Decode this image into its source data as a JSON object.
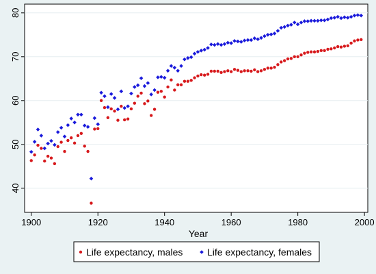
{
  "chart_data": {
    "type": "scatter",
    "title": "",
    "xlabel": "Year",
    "ylabel": "",
    "xlim": [
      1898,
      2001
    ],
    "ylim": [
      34.5,
      82
    ],
    "x_ticks": [
      1900,
      1920,
      1940,
      1960,
      1980,
      2000
    ],
    "y_ticks": [
      40,
      50,
      60,
      70,
      80
    ],
    "x_tick_labels": [
      "1900",
      "1920",
      "1940",
      "1960",
      "1980",
      "2000"
    ],
    "y_tick_labels": [
      "40",
      "50",
      "60",
      "70",
      "80"
    ],
    "grid": true,
    "legend_position": "bottom",
    "x": [
      1900,
      1901,
      1902,
      1903,
      1904,
      1905,
      1906,
      1907,
      1908,
      1909,
      1910,
      1911,
      1912,
      1913,
      1914,
      1915,
      1916,
      1917,
      1918,
      1919,
      1920,
      1921,
      1922,
      1923,
      1924,
      1925,
      1926,
      1927,
      1928,
      1929,
      1930,
      1931,
      1932,
      1933,
      1934,
      1935,
      1936,
      1937,
      1938,
      1939,
      1940,
      1941,
      1942,
      1943,
      1944,
      1945,
      1946,
      1947,
      1948,
      1949,
      1950,
      1951,
      1952,
      1953,
      1954,
      1955,
      1956,
      1957,
      1958,
      1959,
      1960,
      1961,
      1962,
      1963,
      1964,
      1965,
      1966,
      1967,
      1968,
      1969,
      1970,
      1971,
      1972,
      1973,
      1974,
      1975,
      1976,
      1977,
      1978,
      1979,
      1980,
      1981,
      1982,
      1983,
      1984,
      1985,
      1986,
      1987,
      1988,
      1989,
      1990,
      1991,
      1992,
      1993,
      1994,
      1995,
      1996,
      1997,
      1998,
      1999
    ],
    "series": [
      {
        "name": "Life expectancy, males",
        "color": "#d7191c",
        "values": [
          46.3,
          47.6,
          49.8,
          49.1,
          46.2,
          47.3,
          46.9,
          45.6,
          49.5,
          50.5,
          48.4,
          50.9,
          51.5,
          50.3,
          52.0,
          52.5,
          49.6,
          48.4,
          36.6,
          53.5,
          53.6,
          60.0,
          58.4,
          56.1,
          58.1,
          57.6,
          55.5,
          58.7,
          55.6,
          55.8,
          58.1,
          59.4,
          61.0,
          61.7,
          59.3,
          59.9,
          56.6,
          58.0,
          61.9,
          62.1,
          60.8,
          63.1,
          64.7,
          62.4,
          63.6,
          63.6,
          64.4,
          64.4,
          64.6,
          65.2,
          65.6,
          65.9,
          65.8,
          66.0,
          66.7,
          66.7,
          66.7,
          66.4,
          66.6,
          66.8,
          66.6,
          67.1,
          66.9,
          66.6,
          66.8,
          66.8,
          66.7,
          67.0,
          66.6,
          66.8,
          67.1,
          67.4,
          67.4,
          67.6,
          68.2,
          68.8,
          69.1,
          69.5,
          69.6,
          70.0,
          70.0,
          70.4,
          70.8,
          71.0,
          71.1,
          71.1,
          71.2,
          71.4,
          71.4,
          71.7,
          71.8,
          72.0,
          72.3,
          72.2,
          72.4,
          72.5,
          73.1,
          73.6,
          73.8,
          73.9
        ]
      },
      {
        "name": "Life expectancy, females",
        "color": "#1a1adb",
        "values": [
          48.3,
          50.6,
          53.4,
          52.0,
          49.1,
          50.2,
          50.8,
          49.9,
          52.8,
          53.8,
          51.8,
          54.4,
          55.9,
          55.0,
          56.8,
          56.8,
          54.3,
          54.0,
          42.2,
          56.0,
          54.6,
          61.8,
          61.0,
          58.5,
          61.5,
          60.6,
          58.0,
          62.1,
          58.3,
          58.7,
          61.6,
          63.1,
          63.5,
          65.1,
          63.3,
          64.0,
          61.4,
          62.4,
          65.3,
          65.4,
          65.2,
          66.8,
          67.9,
          67.5,
          66.8,
          67.9,
          69.4,
          69.7,
          69.9,
          70.7,
          71.1,
          71.4,
          71.6,
          72.0,
          72.8,
          72.7,
          72.9,
          72.7,
          72.9,
          73.2,
          73.1,
          73.6,
          73.5,
          73.4,
          73.7,
          73.8,
          73.8,
          74.2,
          74.0,
          74.3,
          74.7,
          75.0,
          75.1,
          75.3,
          75.9,
          76.6,
          76.8,
          77.1,
          77.3,
          77.8,
          77.4,
          77.8,
          78.1,
          78.1,
          78.2,
          78.2,
          78.2,
          78.3,
          78.3,
          78.5,
          78.8,
          78.9,
          79.1,
          78.8,
          79.0,
          78.9,
          79.1,
          79.4,
          79.5,
          79.4
        ]
      }
    ]
  }
}
